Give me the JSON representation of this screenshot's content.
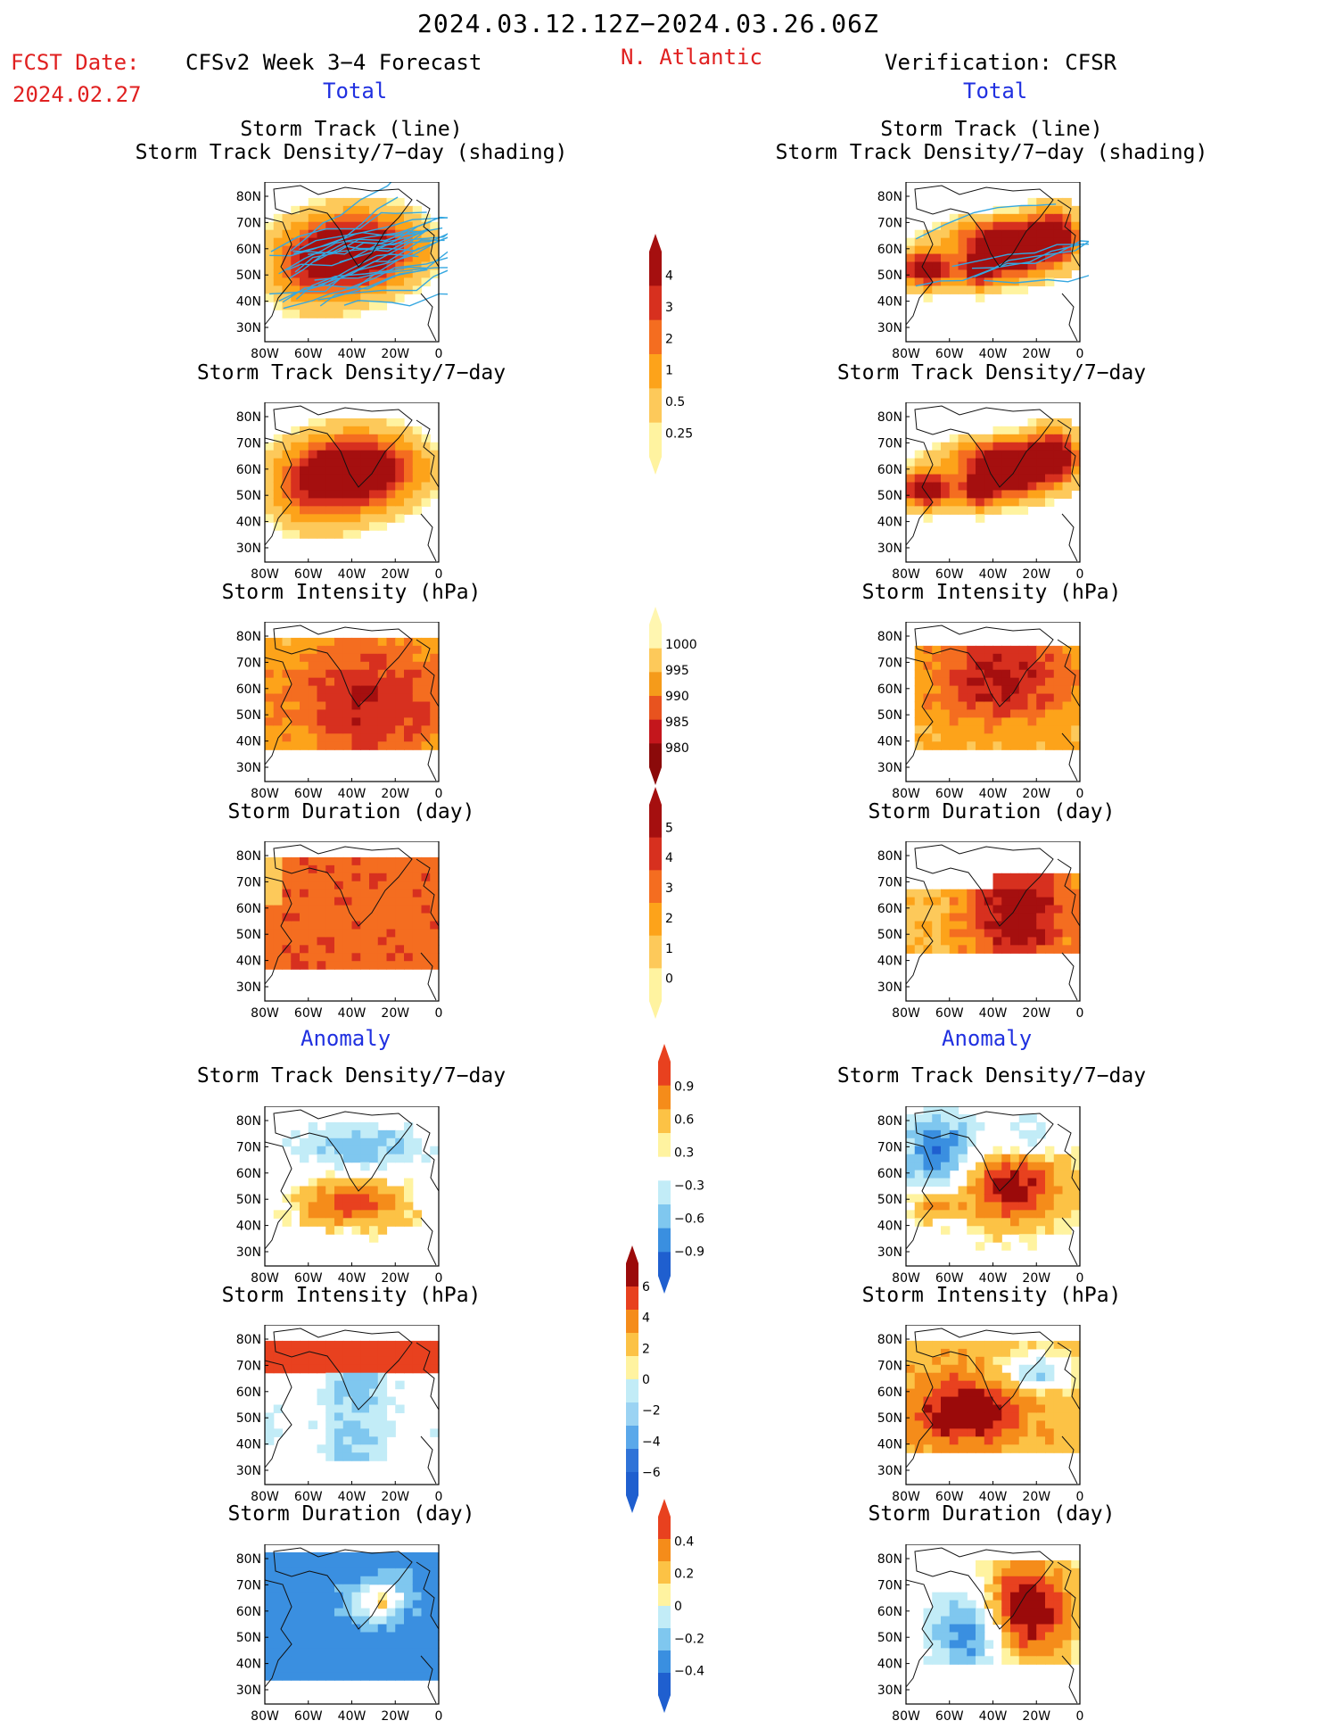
{
  "header": {
    "date_range": "2024.03.12.12Z−2024.03.26.06Z",
    "region": "N. Atlantic",
    "fcst_label": "FCST Date:",
    "fcst_date": "2024.02.27",
    "left_heading": "CFSv2 Week 3−4 Forecast",
    "right_heading": "Verification: CFSR",
    "total_left": "Total",
    "total_right": "Total",
    "anomaly_left": "Anomaly",
    "anomaly_right": "Anomaly"
  },
  "titles": {
    "track_line": "Storm Track (line)",
    "track_shading": "Storm Track Density/7−day (shading)",
    "density": "Storm Track Density/7−day",
    "intensity": "Storm Intensity (hPa)",
    "duration": "Storm Duration (day)"
  },
  "axes": {
    "lat_labels": [
      "80N",
      "70N",
      "60N",
      "50N",
      "40N",
      "30N"
    ],
    "lon_labels": [
      "80W",
      "60W",
      "40W",
      "20W",
      "0"
    ]
  },
  "colorbars": [
    {
      "name": "density-total",
      "labels": [
        "4",
        "3",
        "2",
        "1",
        "0.5",
        "0.25"
      ],
      "colors": [
        "#a50f0f",
        "#d7301f",
        "#f46d20",
        "#fda31a",
        "#fdc95a",
        "#fff3a0"
      ]
    },
    {
      "name": "intensity-total",
      "labels": [
        "1000",
        "995",
        "990",
        "985",
        "980"
      ],
      "colors": [
        "#fff6b0",
        "#fdc95a",
        "#f59b1a",
        "#e8531f",
        "#c4161c",
        "#8b0a0a"
      ]
    },
    {
      "name": "duration-total",
      "labels": [
        "5",
        "4",
        "3",
        "2",
        "1",
        "0"
      ],
      "colors": [
        "#a50f0f",
        "#d7301f",
        "#f46d20",
        "#fda31a",
        "#fdc95a",
        "#fff3a0"
      ]
    },
    {
      "name": "density-anom",
      "labels": [
        "0.9",
        "0.6",
        "0.3",
        "−0.3",
        "−0.6",
        "−0.9"
      ],
      "colors": [
        "#e8411f",
        "#f58c1a",
        "#fcc245",
        "#fff3a0",
        "#ffffff",
        "#c2ecf7",
        "#7fc7ef",
        "#3a8fe0",
        "#1f5fcf"
      ]
    },
    {
      "name": "intensity-anom",
      "labels": [
        "6",
        "4",
        "2",
        "0",
        "−2",
        "−4",
        "−6"
      ],
      "colors": [
        "#9b0a0a",
        "#e8411f",
        "#f58c1a",
        "#fcc245",
        "#fff3a0",
        "#c2ecf7",
        "#9bd3f3",
        "#5aa8ea",
        "#2f73d8",
        "#1f5fcf"
      ]
    },
    {
      "name": "duration-anom",
      "labels": [
        "0.4",
        "0.2",
        "0",
        "−0.2",
        "−0.4"
      ],
      "colors": [
        "#e8411f",
        "#f58c1a",
        "#fcc245",
        "#fff3a0",
        "#c2ecf7",
        "#7fc7ef",
        "#3a8fe0",
        "#1f5fcf"
      ]
    }
  ]
}
